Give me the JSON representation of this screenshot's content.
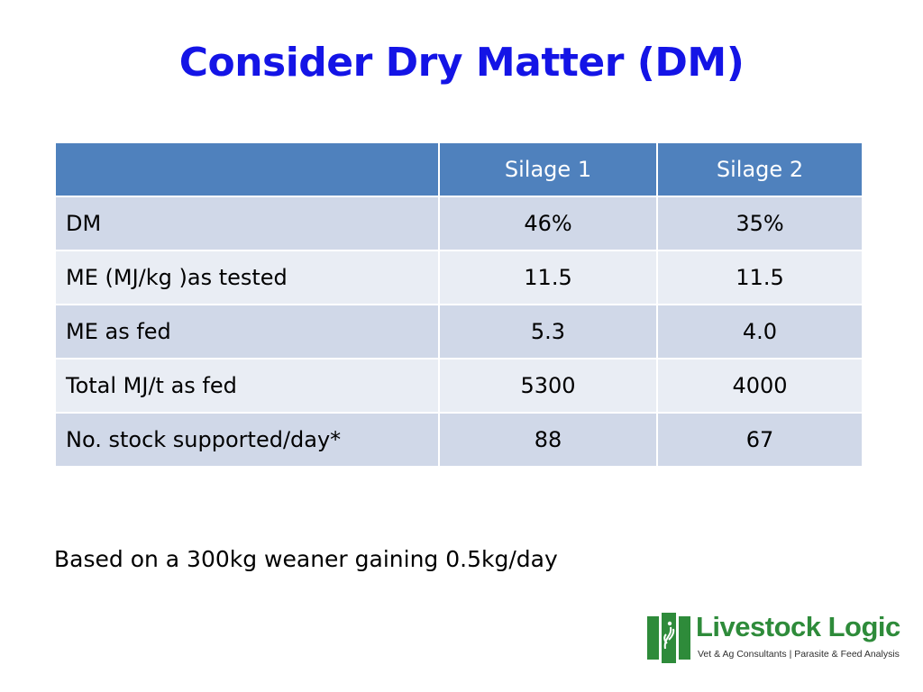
{
  "slide": {
    "title": "Consider Dry Matter (DM)",
    "footnote": "Based on a 300kg weaner gaining 0.5kg/day"
  },
  "colors": {
    "title": "#1414e6",
    "header_bg": "#4f81bd",
    "row_a": "#d0d8e8",
    "row_b": "#e9edf4",
    "logo_green": "#2e8b3a"
  },
  "table": {
    "headers": [
      "",
      "Silage 1",
      "Silage 2"
    ],
    "rows": [
      {
        "label": "DM",
        "silage1": "46%",
        "silage2": "35%"
      },
      {
        "label": "ME (MJ/kg )as tested",
        "silage1": "11.5",
        "silage2": "11.5"
      },
      {
        "label": "ME as fed",
        "silage1": "5.3",
        "silage2": "4.0"
      },
      {
        "label": "Total MJ/t as fed",
        "silage1": "5300",
        "silage2": "4000"
      },
      {
        "label": "No. stock supported/day*",
        "silage1": "88",
        "silage2": "67"
      }
    ]
  },
  "logo": {
    "name": "Livestock Logic",
    "tagline": "Vet & Ag Consultants | Parasite & Feed Analysis",
    "icon": "livestock-logic-logo-icon"
  }
}
